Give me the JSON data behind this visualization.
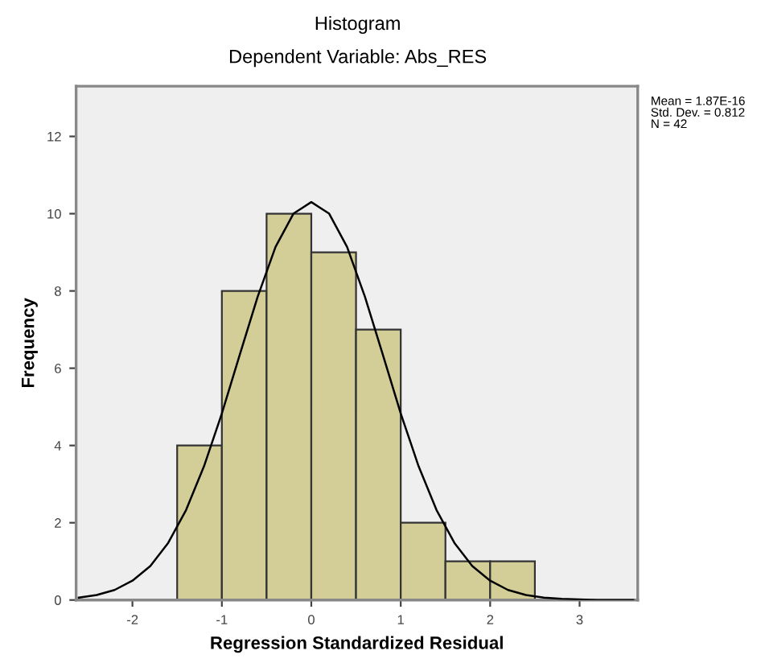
{
  "chart_data": {
    "type": "histogram",
    "title": "Histogram",
    "subtitle": "Dependent Variable: Abs_RES",
    "xlabel": "Regression Standardized Residual",
    "ylabel": "Frequency",
    "bins": [
      -1.5,
      -1.0,
      -0.5,
      0.0,
      0.5,
      1.0,
      1.5,
      2.0,
      2.5
    ],
    "values": [
      4,
      8,
      10,
      9,
      7,
      2,
      1,
      1
    ],
    "color": "#d3ce98",
    "series": [
      {
        "type": "line",
        "color": "#000000",
        "x": [
          -2.6,
          -2.4,
          -2.2,
          -2.0,
          -1.8,
          -1.6,
          -1.4,
          -1.2,
          -1.0,
          -0.8,
          -0.6,
          -0.4,
          -0.2,
          0.0,
          0.2,
          0.4,
          0.6,
          0.8,
          1.0,
          1.2,
          1.4,
          1.6,
          1.8,
          2.0,
          2.2,
          2.4,
          2.6,
          2.8,
          3.2,
          3.6
        ],
        "values": [
          0.06,
          0.13,
          0.26,
          0.5,
          0.88,
          1.48,
          2.33,
          3.46,
          4.83,
          6.35,
          7.85,
          9.14,
          10.0,
          10.3,
          10.0,
          9.14,
          7.85,
          6.35,
          4.83,
          3.46,
          2.33,
          1.48,
          0.88,
          0.5,
          0.26,
          0.13,
          0.06,
          0.03,
          0.0,
          0.0
        ]
      }
    ],
    "xlim": [
      -2.63,
      3.65
    ],
    "ylim": [
      0,
      13.3
    ],
    "xticks": [
      -2,
      -1,
      0,
      1,
      2,
      3
    ],
    "yticks": [
      0,
      2,
      4,
      6,
      8,
      10,
      12
    ],
    "grid": false,
    "legend": false,
    "annotations": [
      "Mean = 1.87E-16",
      "Std. Dev. = 0.812",
      "N = 42"
    ]
  }
}
